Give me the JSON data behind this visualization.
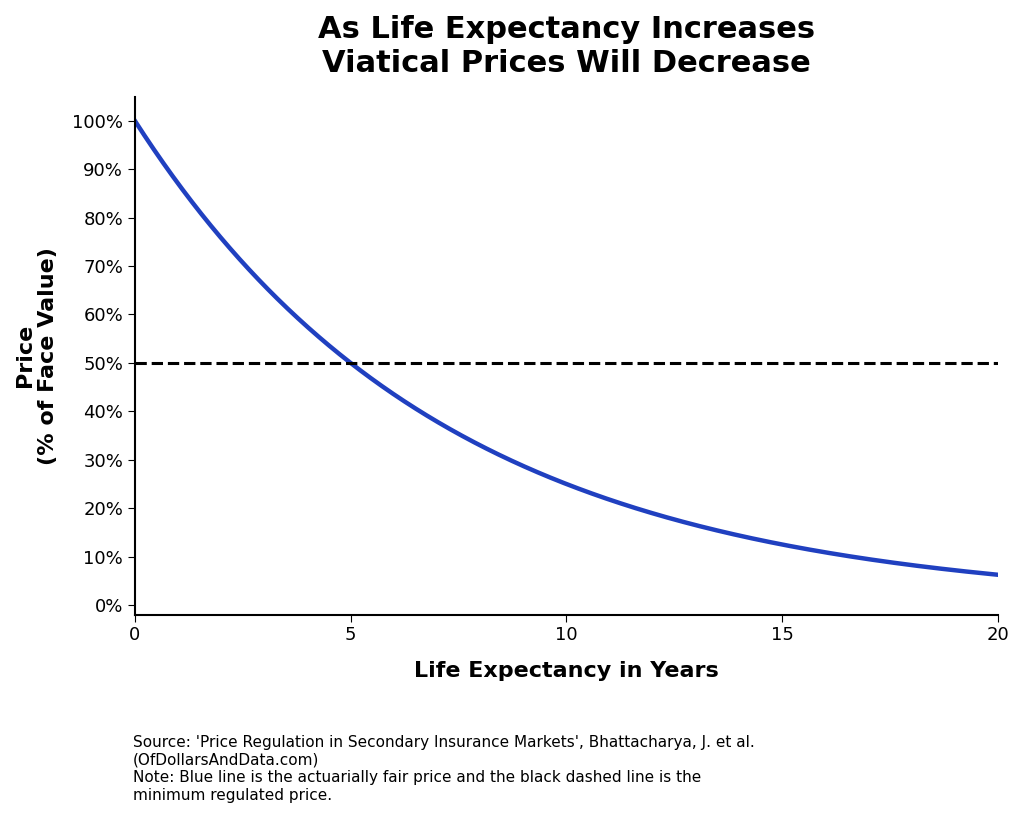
{
  "title_line1": "As Life Expectancy Increases",
  "title_line2": "Viatical Prices Will Decrease",
  "xlabel": "Life Expectancy in Years",
  "ylabel_line1": "Price",
  "ylabel_line2": "(% of Face Value)",
  "xlim": [
    0,
    20
  ],
  "ylim": [
    -0.02,
    1.05
  ],
  "x_ticks": [
    0,
    5,
    10,
    15,
    20
  ],
  "y_ticks": [
    0.0,
    0.1,
    0.2,
    0.3,
    0.4,
    0.5,
    0.6,
    0.7,
    0.8,
    0.9,
    1.0
  ],
  "dashed_line_y": 0.5,
  "curve_color": "#2040c0",
  "dashed_color": "#000000",
  "background_color": "#ffffff",
  "discount_rate": 0.1487,
  "source_text": "Source: 'Price Regulation in Secondary Insurance Markets', Bhattacharya, J. et al.\n(OfDollarsAndData.com)\nNote: Blue line is the actuarially fair price and the black dashed line is the\nminimum regulated price.",
  "title_fontsize": 22,
  "axis_label_fontsize": 16,
  "tick_fontsize": 13,
  "source_fontsize": 11,
  "curve_linewidth": 3.2,
  "dashed_linewidth": 2.2
}
